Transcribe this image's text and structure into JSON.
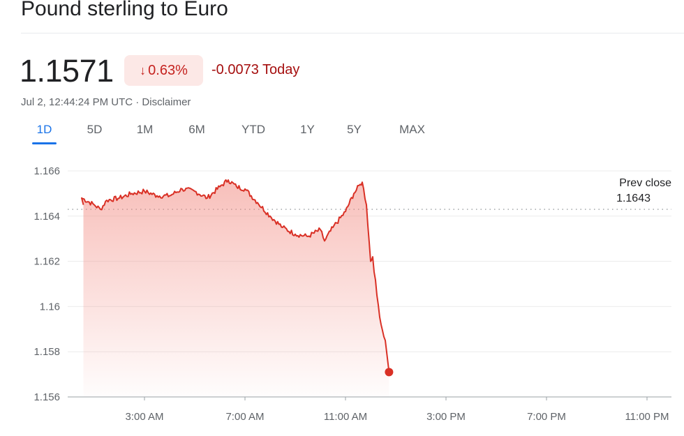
{
  "header": {
    "title": "Pound sterling to Euro",
    "price": "1.1571",
    "pct_change": "0.63%",
    "abs_change": "-0.0073 Today",
    "timestamp": "Jul 2, 12:44:24 PM UTC · Disclaimer"
  },
  "tabs": [
    "1D",
    "5D",
    "1M",
    "6M",
    "YTD",
    "1Y",
    "5Y",
    "MAX"
  ],
  "active_tab": "1D",
  "colors": {
    "line": "#d93025",
    "fill": "#f28b82",
    "down_badge_bg": "#fce8e6",
    "down_text": "#c5221f",
    "active_tab": "#1a73e8"
  },
  "chart_data": {
    "type": "area",
    "y_ticks": [
      "1.166",
      "1.164",
      "1.162",
      "1.16",
      "1.158",
      "1.156"
    ],
    "x_ticks": [
      "3:00 AM",
      "7:00 AM",
      "11:00 AM",
      "3:00 PM",
      "7:00 PM",
      "11:00 PM"
    ],
    "ylim": [
      1.156,
      1.166
    ],
    "prev_close": {
      "label": "Prev close",
      "value": "1.1643"
    },
    "series": [
      {
        "x": [
          "12:00 AM",
          "12:30 AM",
          "1:00 AM",
          "1:15 AM",
          "1:30 AM",
          "2:00 AM",
          "2:30 AM",
          "3:00 AM",
          "3:30 AM",
          "4:00 AM",
          "4:30 AM",
          "5:00 AM",
          "5:30 AM",
          "6:00 AM",
          "6:20 AM",
          "6:40 AM",
          "7:00 AM",
          "7:30 AM",
          "8:00 AM",
          "8:30 AM",
          "9:00 AM",
          "9:30 AM",
          "10:00 AM",
          "10:10 AM",
          "10:30 AM",
          "11:00 AM",
          "11:20 AM",
          "11:35 AM",
          "11:40 AM",
          "11:50 AM",
          "12:00 PM",
          "12:05 PM",
          "12:15 PM",
          "12:25 PM",
          "12:35 PM",
          "12:44 PM"
        ],
        "values": [
          1.1645,
          1.1648,
          1.1645,
          1.1643,
          1.1647,
          1.1648,
          1.165,
          1.1651,
          1.1649,
          1.1649,
          1.1652,
          1.1651,
          1.1648,
          1.1653,
          1.1656,
          1.1653,
          1.1652,
          1.1646,
          1.164,
          1.1635,
          1.1632,
          1.1631,
          1.1634,
          1.1629,
          1.1635,
          1.1642,
          1.165,
          1.1654,
          1.1655,
          1.1645,
          1.162,
          1.1622,
          1.1605,
          1.1592,
          1.1585,
          1.1571
        ]
      }
    ],
    "last_point": "1.1571"
  }
}
